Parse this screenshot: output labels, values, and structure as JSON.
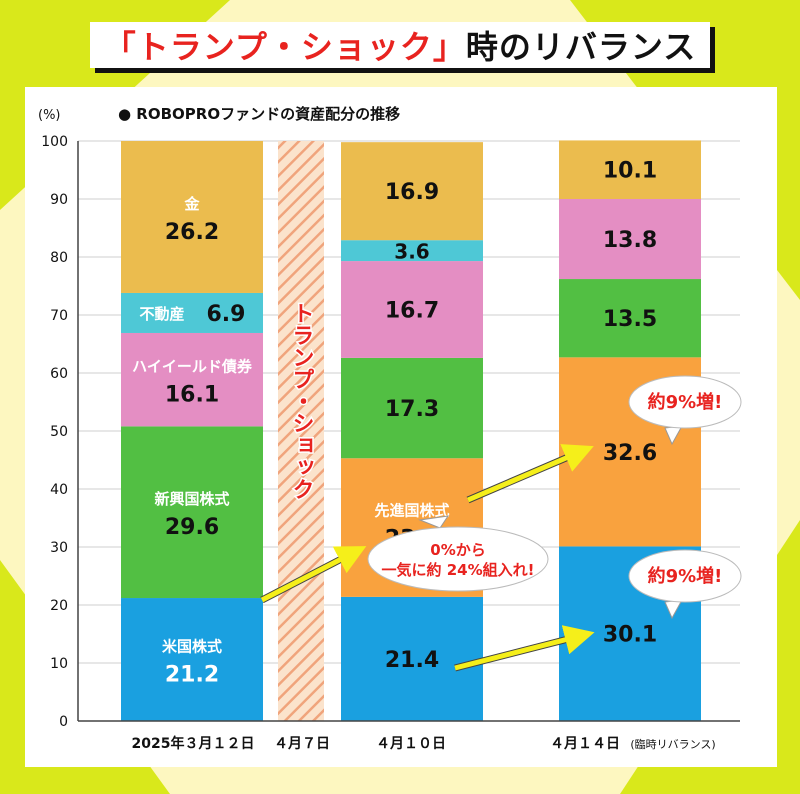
{
  "title": {
    "part_red": "「トランプ・ショック」",
    "part_black": "時のリバランス"
  },
  "chart_data": {
    "type": "bar",
    "stacked": true,
    "subtitle": "● ROBOPROファンドの資産配分の推移",
    "ylabel": "(%)",
    "ylim": [
      0,
      100
    ],
    "yticks": [
      0,
      10,
      20,
      30,
      40,
      50,
      60,
      70,
      80,
      90,
      100
    ],
    "grid": true,
    "categories": [
      "2025年３月１２日",
      "４月１０日",
      "４月１４日"
    ],
    "category_note": "(臨時リバランス)",
    "series": [
      {
        "name": "米国株式",
        "values": [
          21.2,
          21.4,
          30.1
        ],
        "color": "#1aa0e0"
      },
      {
        "name": "先進国株式",
        "values": [
          0,
          23.9,
          32.6
        ],
        "color": "#f9a23e"
      },
      {
        "name": "新興国株式",
        "values": [
          29.6,
          17.3,
          13.5
        ],
        "color": "#52bf43"
      },
      {
        "name": "ハイイールド債券",
        "values": [
          16.1,
          16.7,
          13.8
        ],
        "color": "#e48ec3"
      },
      {
        "name": "不動産",
        "values": [
          6.9,
          3.6,
          0
        ],
        "color": "#4ec8d6"
      },
      {
        "name": "金",
        "values": [
          26.2,
          16.9,
          10.1
        ],
        "color": "#ebbc4e"
      }
    ],
    "event": {
      "date_label": "４月７日",
      "label": "トランプ・ショック",
      "color": "#e8231f"
    },
    "annotations": [
      {
        "lines": [
          "0%から",
          "一気に約 24%組入れ!"
        ]
      },
      {
        "lines": [
          "約9%増!"
        ]
      },
      {
        "lines": [
          "約9%増!"
        ]
      }
    ]
  }
}
